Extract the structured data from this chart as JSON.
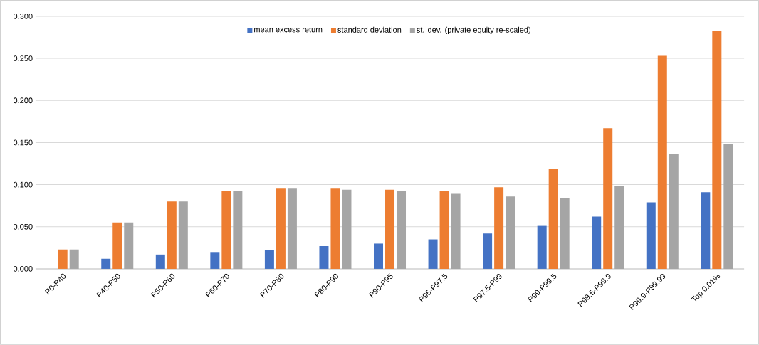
{
  "chart_data": {
    "type": "bar",
    "categories": [
      "P0-P40",
      "P40-P50",
      "P50-P60",
      "P60-P70",
      "P70-P80",
      "P80-P90",
      "P90-P95",
      "P95-P97.5",
      "P97.5-P99",
      "P99-P99.5",
      "P99.5-P99.9",
      "P99.9-P99.99",
      "Top 0.01%"
    ],
    "series": [
      {
        "name": "mean excess return",
        "color": "#4472c4",
        "values": [
          0.0,
          0.012,
          0.017,
          0.02,
          0.022,
          0.027,
          0.03,
          0.035,
          0.042,
          0.051,
          0.062,
          0.079,
          0.091
        ]
      },
      {
        "name": "standard deviation",
        "color": "#ed7d31",
        "values": [
          0.023,
          0.055,
          0.08,
          0.092,
          0.096,
          0.096,
          0.094,
          0.092,
          0.097,
          0.119,
          0.167,
          0.253,
          0.283
        ]
      },
      {
        "name": "st. dev. (private equity re-scaled)",
        "color": "#a5a5a5",
        "values": [
          0.023,
          0.055,
          0.08,
          0.092,
          0.096,
          0.094,
          0.092,
          0.089,
          0.086,
          0.084,
          0.098,
          0.136,
          0.148
        ]
      }
    ],
    "ylim": [
      0,
      0.3
    ],
    "yticks": [
      {
        "value": 0,
        "label": "0.000"
      },
      {
        "value": 0.05,
        "label": "0.050"
      },
      {
        "value": 0.1,
        "label": "0.100"
      },
      {
        "value": 0.15,
        "label": "0.150"
      },
      {
        "value": 0.2,
        "label": "0.200"
      },
      {
        "value": 0.25,
        "label": "0.250"
      },
      {
        "value": 0.3,
        "label": "0.300"
      }
    ],
    "grid": "y",
    "legend": "top"
  }
}
